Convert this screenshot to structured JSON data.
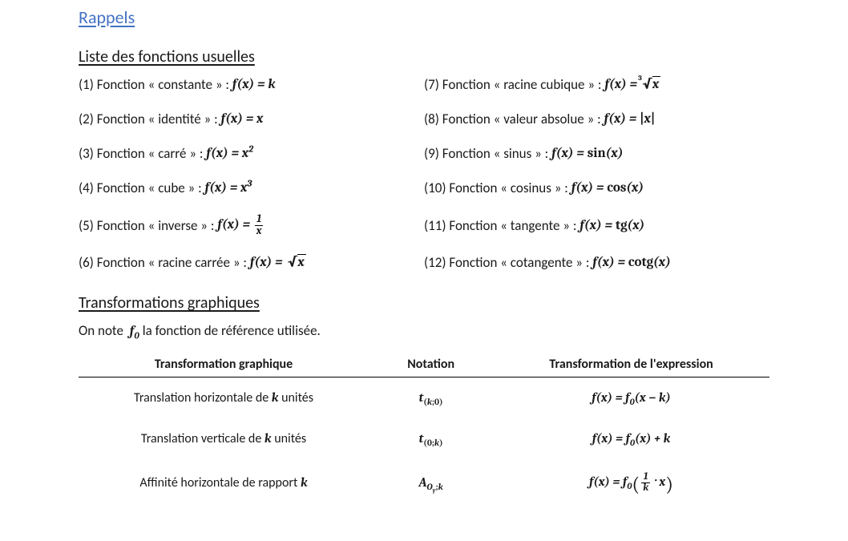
{
  "colors": {
    "heading": "#4472c4",
    "text": "#1a1a1a",
    "background": "#ffffff",
    "rule": "#000000"
  },
  "typography": {
    "body_family": "Calibri",
    "math_family": "Cambria Math",
    "title_size_pt": 16,
    "subtitle_size_pt": 15,
    "body_size_pt": 13
  },
  "title": "Rappels",
  "section1": {
    "heading": "Liste des fonctions usuelles",
    "items_html": [
      "(1) Fonction « constante » : <span class=\"math\">f(x) = k</span>",
      "(7) Fonction « racine cubique » : <span class=\"math\">f(x) = <span class=\"sqrt\"><span class=\"index\">3</span><span class=\"radicand\">x</span></span></span>",
      "(2) Fonction « identité » : <span class=\"math\">f(x) = x</span>",
      "(8) Fonction « valeur absolue » : <span class=\"math\">f(x) = <span class=\"rm\">|</span>x<span class=\"rm\">|</span></span>",
      "(3) Fonction « carré » : <span class=\"math\">f(x) = x<span class=\"sup\">2</span></span>",
      "(9) Fonction « sinus » : <span class=\"math\">f(x) = <span class=\"rm\">sin</span>(x)</span>",
      "(4) Fonction « cube » : <span class=\"math\">f(x) = x<span class=\"sup\">3</span></span>",
      "(10) Fonction « cosinus » : <span class=\"math\">f(x) = <span class=\"rm\">cos</span>(x)</span>",
      "(5) Fonction « inverse » : <span class=\"math\">f(x) = <span class=\"frac\"><span class=\"num\">1</span><span class=\"den\">x</span></span></span>",
      "(11) Fonction « tangente » : <span class=\"math\">f(x) = <span class=\"rm\">tg</span>(x)</span>",
      "(6) Fonction « racine carrée » : <span class=\"math\">f(x) = <span class=\"sqrt\"><span class=\"radicand\">x</span></span></span>",
      "(12) Fonction « cotangente » : <span class=\"math\">f(x) = <span class=\"rm\">cotg</span>(x)</span>"
    ]
  },
  "section2": {
    "heading": "Transformations graphiques",
    "note_html": "On note <span class=\"math\">f<span class=\"sub\">0</span></span> la fonction de référence utilisée.",
    "table": {
      "columns": [
        "Transformation graphique",
        "Notation",
        "Transformation de l'expression"
      ],
      "rows_html": [
        [
          "Translation horizontale de <span class=\"mathcell\">k</span> unités",
          "<span class=\"mathcell\">t<span class=\"sub\"><span class=\"rm\">(</span>k<span class=\"rm\">;0)</span></span></span>",
          "<span class=\"mathcell\">f(x) = f<span class=\"sub\">0</span>(x − k)</span>"
        ],
        [
          "Translation verticale de <span class=\"mathcell\">k</span> unités",
          "<span class=\"mathcell\">t<span class=\"sub\"><span class=\"rm\">(0;</span>k<span class=\"rm\">)</span></span></span>",
          "<span class=\"mathcell\">f(x) = f<span class=\"sub\">0</span>(x) + k</span>"
        ],
        [
          "Affinité horizontale de rapport <span class=\"mathcell\">k</span>",
          "<span class=\"mathcell\">A<span class=\"sub\">O<span class=\"sub\">y</span><span class=\"rm\">;</span>k</span></span>",
          "<span class=\"mathcell\">f(x) = f<span class=\"sub\">0</span><span class=\"bigparen\">(</span><span class=\"frac\"><span class=\"num\">1</span><span class=\"den\">k</span></span> · x<span class=\"bigparen\">)</span></span>"
        ]
      ]
    }
  }
}
